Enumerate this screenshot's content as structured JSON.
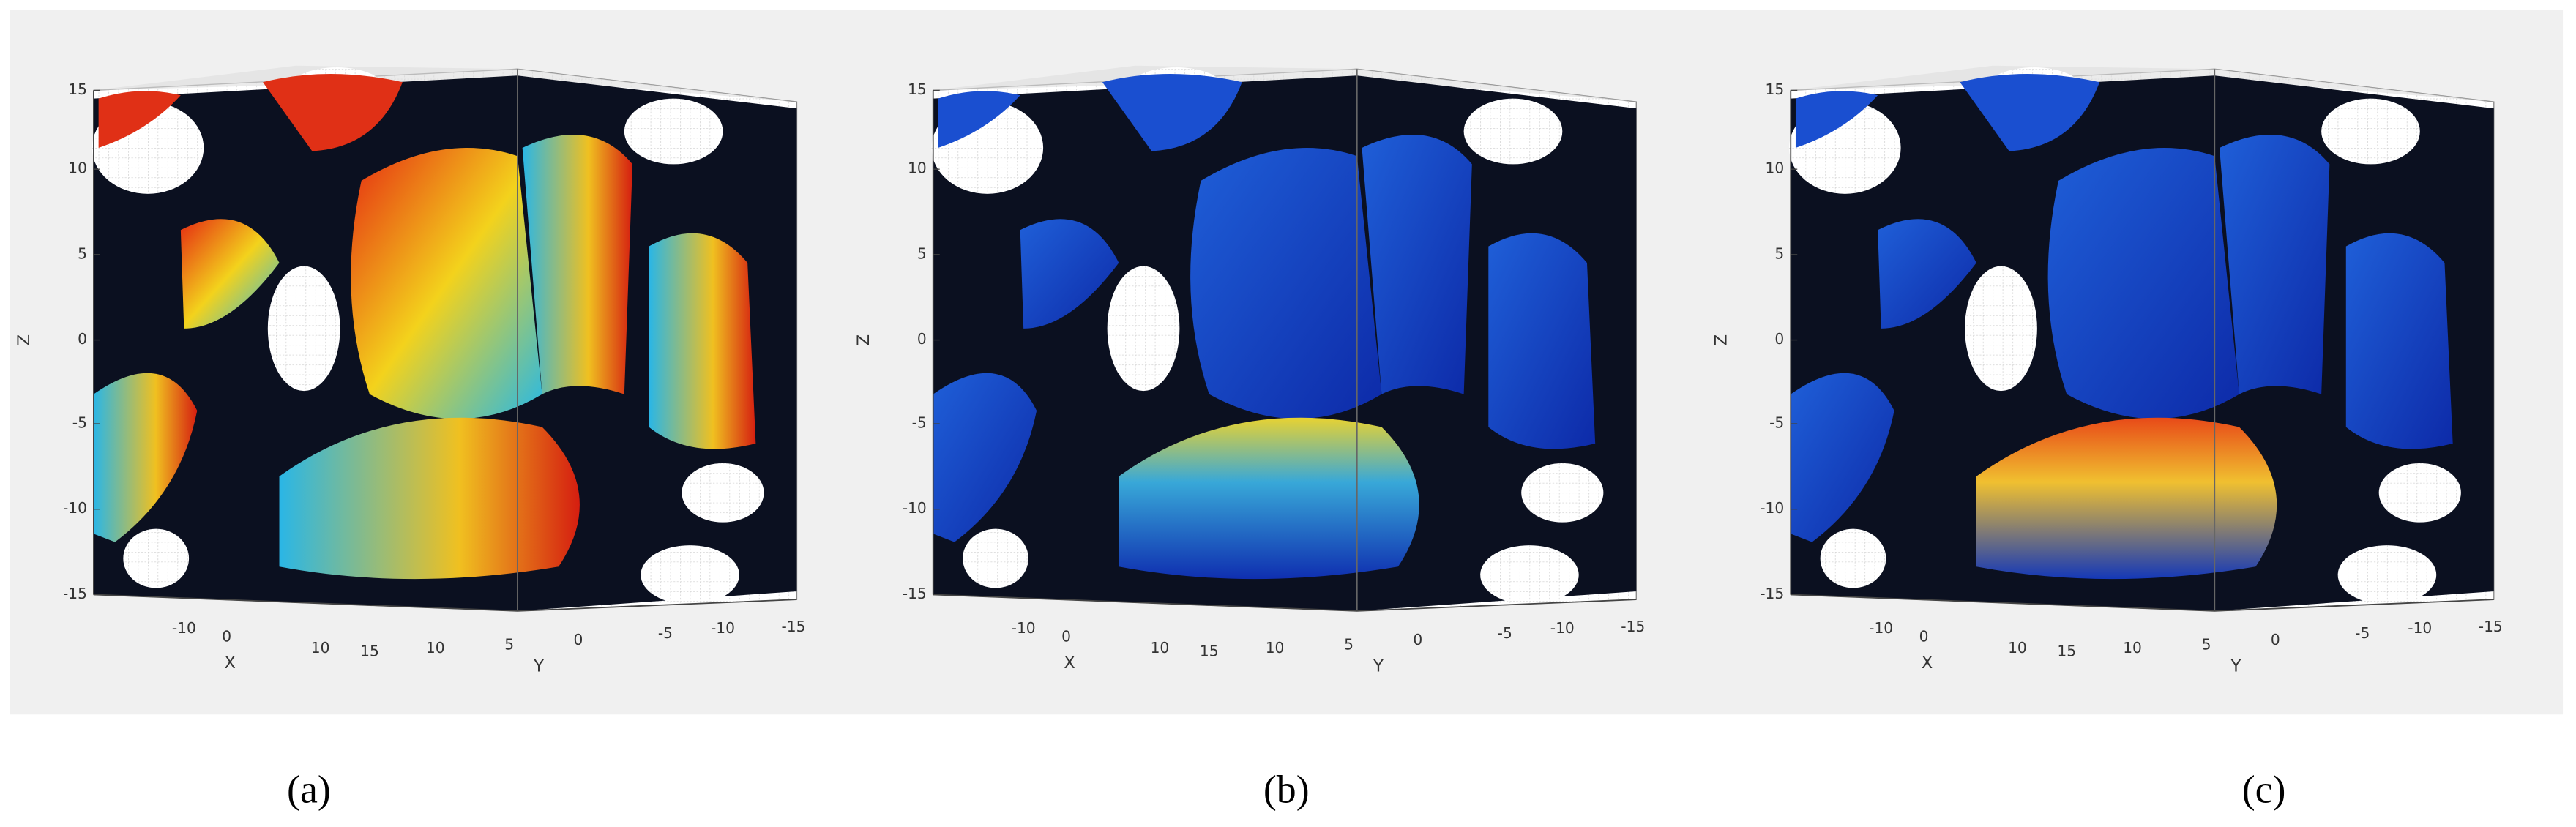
{
  "panels": [
    {
      "label": "(a)",
      "z_ticks": [
        15,
        10,
        5,
        0,
        -5,
        -10,
        -15
      ],
      "x_ticks": [
        -10,
        0,
        10
      ],
      "y_ticks": [
        15,
        10,
        5,
        0,
        -5,
        -10,
        -15
      ],
      "x_label": "X",
      "y_label": "Y",
      "z_label": "Z"
    },
    {
      "label": "(b)",
      "z_ticks": [
        15,
        10,
        5,
        0,
        -5,
        -10,
        -15
      ],
      "x_ticks": [
        -10,
        0,
        10
      ],
      "y_ticks": [
        15,
        10,
        5,
        0,
        -5,
        -10,
        -15
      ],
      "x_label": "X",
      "y_label": "Y",
      "z_label": "Z"
    },
    {
      "label": "(c)",
      "z_ticks": [
        15,
        10,
        5,
        0,
        -5,
        -10,
        -15
      ],
      "x_ticks": [
        -10,
        0,
        10
      ],
      "y_ticks": [
        15,
        10,
        5,
        0,
        -5,
        -10,
        -15
      ],
      "x_label": "X",
      "y_label": "Y",
      "z_label": "Z"
    }
  ]
}
